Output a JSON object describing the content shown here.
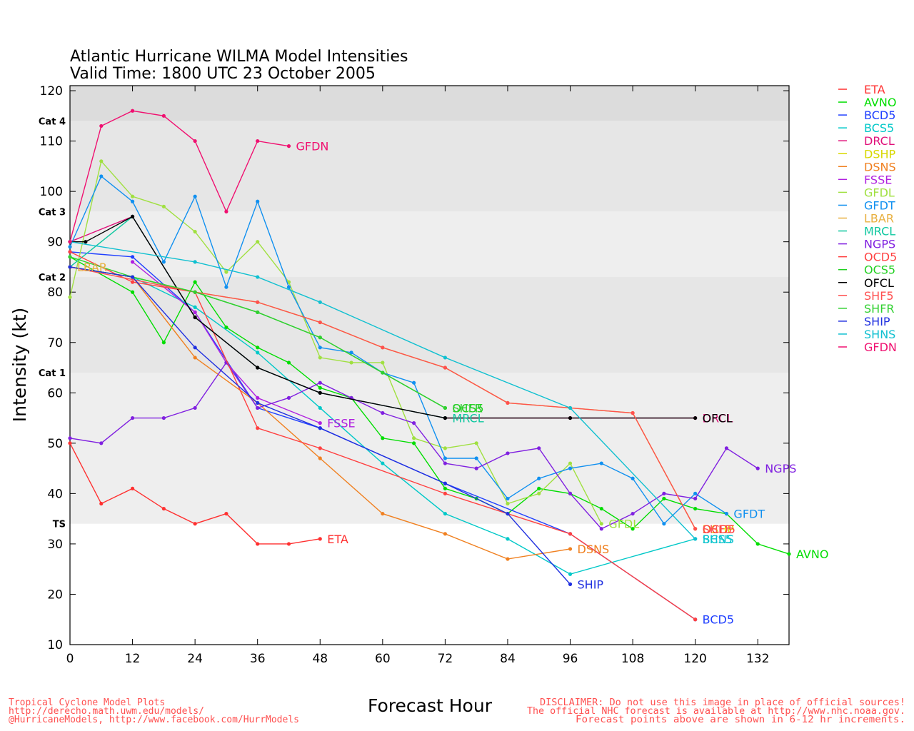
{
  "chart_data": {
    "type": "line",
    "title": "Atlantic Hurricane WILMA Model Intensities",
    "subtitle": "Valid Time: 1800 UTC 23 October 2005",
    "xlabel": "Forecast Hour",
    "ylabel": "Intensity (kt)",
    "xlim": [
      0,
      138
    ],
    "ylim": [
      10,
      121
    ],
    "xticks": [
      0,
      12,
      24,
      36,
      48,
      60,
      72,
      84,
      96,
      108,
      120,
      132
    ],
    "yticks": [
      10,
      20,
      30,
      40,
      50,
      60,
      70,
      80,
      90,
      100,
      110,
      120
    ],
    "grid": false,
    "legend_position": "right",
    "category_bands": [
      {
        "label": "TS",
        "from": 34,
        "to": 64,
        "color": "#eeeeee"
      },
      {
        "label": "Cat 1",
        "from": 64,
        "to": 83,
        "color": "#e6e6e6"
      },
      {
        "label": "Cat 2",
        "from": 83,
        "to": 96,
        "color": "#eeeeee"
      },
      {
        "label": "Cat 3",
        "from": 96,
        "to": 114,
        "color": "#e6e6e6"
      },
      {
        "label": "Cat 4",
        "from": 114,
        "to": 121,
        "color": "#dcdcdc"
      }
    ],
    "series": [
      {
        "name": "ETA",
        "color": "#ff3030",
        "end_label": "ETA",
        "points": [
          [
            0,
            50
          ],
          [
            6,
            38
          ],
          [
            12,
            41
          ],
          [
            18,
            37
          ],
          [
            24,
            34
          ],
          [
            30,
            36
          ],
          [
            36,
            30
          ],
          [
            42,
            30
          ],
          [
            48,
            31
          ]
        ]
      },
      {
        "name": "AVNO",
        "color": "#00dd00",
        "end_label": "AVNO",
        "points": [
          [
            0,
            87
          ],
          [
            12,
            80
          ],
          [
            18,
            70
          ],
          [
            24,
            82
          ],
          [
            30,
            73
          ],
          [
            36,
            69
          ],
          [
            42,
            66
          ],
          [
            48,
            61
          ],
          [
            54,
            59
          ],
          [
            60,
            51
          ],
          [
            66,
            50
          ],
          [
            72,
            41
          ],
          [
            78,
            39
          ],
          [
            84,
            36
          ],
          [
            90,
            41
          ],
          [
            96,
            40
          ],
          [
            102,
            37
          ],
          [
            108,
            33
          ],
          [
            114,
            39
          ],
          [
            120,
            37
          ],
          [
            126,
            36
          ],
          [
            132,
            30
          ],
          [
            138,
            28
          ]
        ]
      },
      {
        "name": "BCD5",
        "color": "#2040ff",
        "end_label": "BCD5",
        "points": [
          [
            0,
            88
          ],
          [
            12,
            87
          ],
          [
            24,
            76
          ],
          [
            36,
            57
          ],
          [
            48,
            53
          ],
          [
            72,
            42
          ],
          [
            96,
            32
          ],
          [
            120,
            15
          ]
        ]
      },
      {
        "name": "BCS5",
        "color": "#00c8c8",
        "end_label": "BCS5",
        "points": [
          [
            0,
            85
          ],
          [
            12,
            83
          ],
          [
            24,
            77
          ],
          [
            36,
            68
          ],
          [
            48,
            57
          ],
          [
            60,
            46
          ],
          [
            72,
            36
          ],
          [
            84,
            31
          ],
          [
            96,
            24
          ],
          [
            120,
            31
          ]
        ]
      },
      {
        "name": "DRCL",
        "color": "#e0107a",
        "end_label": "DRCL",
        "points": [
          [
            0,
            90
          ],
          [
            12,
            95
          ],
          [
            24,
            75
          ],
          [
            36,
            65
          ],
          [
            48,
            60
          ],
          [
            72,
            55
          ],
          [
            96,
            55
          ],
          [
            120,
            55
          ]
        ]
      },
      {
        "name": "DSHP",
        "color": "#d8d800",
        "end_label": "DSHP",
        "points": [
          [
            0,
            85
          ],
          [
            12,
            83
          ],
          [
            24,
            80
          ],
          [
            36,
            78
          ],
          [
            48,
            74
          ],
          [
            60,
            69
          ],
          [
            72,
            65
          ],
          [
            84,
            58
          ],
          [
            96,
            57
          ],
          [
            108,
            56
          ],
          [
            120,
            33
          ]
        ]
      },
      {
        "name": "DSNS",
        "color": "#f08020",
        "end_label": "DSNS",
        "points": [
          [
            0,
            85
          ],
          [
            12,
            83
          ],
          [
            24,
            67
          ],
          [
            36,
            58
          ],
          [
            48,
            47
          ],
          [
            60,
            36
          ],
          [
            72,
            32
          ],
          [
            84,
            27
          ],
          [
            96,
            29
          ]
        ]
      },
      {
        "name": "FSSE",
        "color": "#b020e0",
        "end_label": "FSSE",
        "points": [
          [
            12,
            86
          ],
          [
            24,
            76
          ],
          [
            30,
            66
          ],
          [
            36,
            59
          ],
          [
            48,
            54
          ]
        ]
      },
      {
        "name": "GFDL",
        "color": "#a0e040",
        "end_label": "GFDL",
        "points": [
          [
            0,
            79
          ],
          [
            6,
            106
          ],
          [
            12,
            99
          ],
          [
            18,
            97
          ],
          [
            24,
            92
          ],
          [
            30,
            84
          ],
          [
            36,
            90
          ],
          [
            42,
            82
          ],
          [
            48,
            67
          ],
          [
            54,
            66
          ],
          [
            60,
            66
          ],
          [
            66,
            51
          ],
          [
            72,
            49
          ],
          [
            78,
            50
          ],
          [
            84,
            38
          ],
          [
            90,
            40
          ],
          [
            96,
            46
          ],
          [
            102,
            34
          ]
        ]
      },
      {
        "name": "GFDT",
        "color": "#1090f0",
        "end_label": "GFDT",
        "points": [
          [
            0,
            89
          ],
          [
            6,
            103
          ],
          [
            12,
            98
          ],
          [
            18,
            86
          ],
          [
            24,
            99
          ],
          [
            30,
            81
          ],
          [
            36,
            98
          ],
          [
            42,
            81
          ],
          [
            48,
            69
          ],
          [
            54,
            68
          ],
          [
            60,
            64
          ],
          [
            66,
            62
          ],
          [
            72,
            47
          ],
          [
            78,
            47
          ],
          [
            84,
            39
          ],
          [
            90,
            43
          ],
          [
            96,
            45
          ],
          [
            102,
            46
          ],
          [
            108,
            43
          ],
          [
            114,
            34
          ],
          [
            120,
            40
          ],
          [
            126,
            36
          ]
        ]
      },
      {
        "name": "LBAR",
        "color": "#e8b040",
        "end_label": "LBAR",
        "points": [
          [
            0,
            85
          ]
        ]
      },
      {
        "name": "MRCL",
        "color": "#10c8a0",
        "end_label": "MRCL",
        "points": [
          [
            0,
            85
          ],
          [
            12,
            95
          ],
          [
            24,
            75
          ],
          [
            36,
            65
          ],
          [
            48,
            60
          ],
          [
            72,
            55
          ]
        ]
      },
      {
        "name": "NGPS",
        "color": "#8020e0",
        "end_label": "NGPS",
        "points": [
          [
            0,
            51
          ],
          [
            6,
            50
          ],
          [
            12,
            55
          ],
          [
            18,
            55
          ],
          [
            24,
            57
          ],
          [
            30,
            66
          ],
          [
            36,
            57
          ],
          [
            42,
            59
          ],
          [
            48,
            62
          ],
          [
            54,
            59
          ],
          [
            60,
            56
          ],
          [
            66,
            54
          ],
          [
            72,
            46
          ],
          [
            78,
            45
          ],
          [
            84,
            48
          ],
          [
            90,
            49
          ],
          [
            96,
            40
          ],
          [
            102,
            33
          ],
          [
            108,
            36
          ],
          [
            114,
            40
          ],
          [
            120,
            39
          ],
          [
            126,
            49
          ],
          [
            132,
            45
          ]
        ]
      },
      {
        "name": "OCD5",
        "color": "#ff4040",
        "end_label": "OCD5",
        "points": [
          [
            0,
            88
          ],
          [
            12,
            82
          ],
          [
            24,
            80
          ],
          [
            36,
            53
          ],
          [
            48,
            49
          ],
          [
            72,
            40
          ],
          [
            96,
            32
          ],
          [
            120,
            15
          ]
        ]
      },
      {
        "name": "OCS5",
        "color": "#20d020",
        "end_label": "OCS5",
        "points": [
          [
            0,
            85
          ],
          [
            12,
            83
          ],
          [
            24,
            80
          ],
          [
            36,
            76
          ],
          [
            48,
            71
          ],
          [
            60,
            64
          ],
          [
            72,
            57
          ]
        ]
      },
      {
        "name": "OFCL",
        "color": "#000000",
        "end_label": "OFCL",
        "points": [
          [
            0,
            90
          ],
          [
            3,
            90
          ],
          [
            12,
            95
          ],
          [
            24,
            75
          ],
          [
            36,
            65
          ],
          [
            48,
            60
          ],
          [
            72,
            55
          ],
          [
            96,
            55
          ],
          [
            120,
            55
          ]
        ]
      },
      {
        "name": "SHF5",
        "color": "#ff5050",
        "end_label": "SHF5",
        "points": [
          [
            0,
            85
          ],
          [
            24,
            80
          ],
          [
            36,
            78
          ],
          [
            48,
            74
          ],
          [
            60,
            69
          ],
          [
            72,
            65
          ],
          [
            84,
            58
          ],
          [
            96,
            57
          ],
          [
            108,
            56
          ],
          [
            120,
            33
          ]
        ]
      },
      {
        "name": "SHFR",
        "color": "#30d030",
        "end_label": "SHFR",
        "points": [
          [
            0,
            87
          ],
          [
            12,
            83
          ],
          [
            24,
            80
          ],
          [
            36,
            76
          ],
          [
            48,
            71
          ],
          [
            60,
            64
          ],
          [
            72,
            57
          ]
        ]
      },
      {
        "name": "SHIP",
        "color": "#2030e0",
        "end_label": "SHIP",
        "points": [
          [
            0,
            85
          ],
          [
            12,
            83
          ],
          [
            24,
            69
          ],
          [
            36,
            58
          ],
          [
            48,
            53
          ],
          [
            72,
            42
          ],
          [
            84,
            36
          ],
          [
            96,
            22
          ]
        ]
      },
      {
        "name": "SHNS",
        "color": "#10c0d0",
        "end_label": "SHNS",
        "points": [
          [
            0,
            90
          ],
          [
            24,
            86
          ],
          [
            36,
            83
          ],
          [
            48,
            78
          ],
          [
            72,
            67
          ],
          [
            96,
            57
          ],
          [
            120,
            31
          ]
        ]
      },
      {
        "name": "GFDN",
        "color": "#f01070",
        "end_label": "GFDN",
        "points": [
          [
            0,
            90
          ],
          [
            6,
            113
          ],
          [
            12,
            116
          ],
          [
            18,
            115
          ],
          [
            24,
            110
          ],
          [
            30,
            96
          ],
          [
            36,
            110
          ],
          [
            42,
            109
          ]
        ]
      }
    ],
    "end_label_overrides": {
      "ETA": [
        48,
        31
      ],
      "SHFR": [
        72,
        57
      ],
      "MRCL": [
        72,
        55
      ],
      "FSSE": [
        48,
        54
      ],
      "DRCL": [
        120,
        55
      ],
      "GFDL": [
        102,
        34
      ],
      "BCD5": [
        120,
        15
      ],
      "BCS5": [
        120,
        31
      ],
      "SHF5": [
        120,
        33
      ],
      "OCD5": [
        120,
        33
      ],
      "DSHP": [
        120,
        33
      ]
    }
  },
  "footer": {
    "left_lines": [
      "Tropical Cyclone Model Plots",
      "http://derecho.math.uwm.edu/models/",
      "@HurricaneModels, http://www.facebook.com/HurrModels"
    ],
    "right_lines": [
      "DISCLAIMER: Do not use this image in place of official sources!",
      "The official NHC forecast is available at http://www.nhc.noaa.gov.",
      "Forecast points above are shown in 6-12 hr increments."
    ]
  }
}
